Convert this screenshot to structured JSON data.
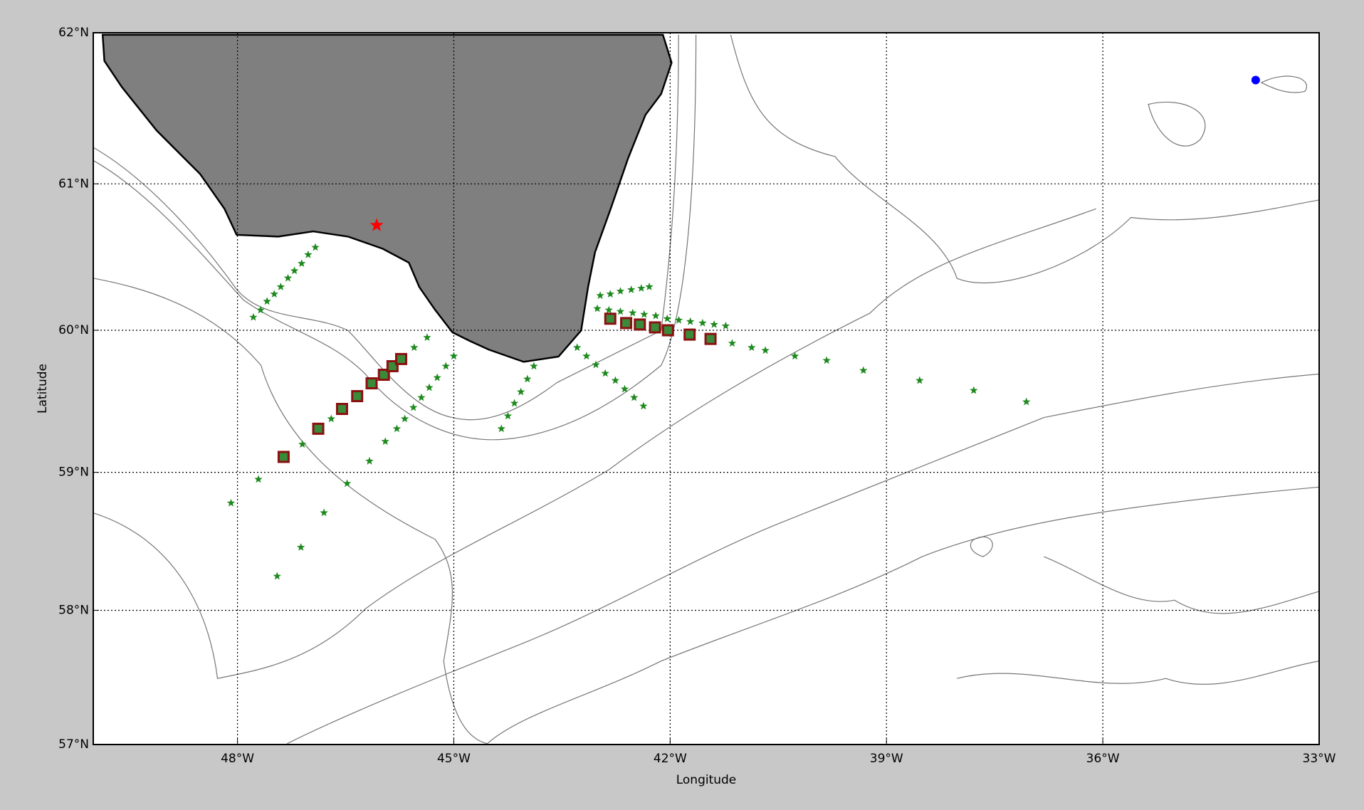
{
  "chart_data": {
    "type": "scatter",
    "projection": "mercator",
    "grid": true,
    "xlabel": "Longitude",
    "ylabel": "Latitude",
    "xlim": [
      -50,
      -33
    ],
    "ylim": [
      57,
      62
    ],
    "xticks": [
      {
        "value": -48,
        "label": "48°W"
      },
      {
        "value": -45,
        "label": "45°W"
      },
      {
        "value": -42,
        "label": "42°W"
      },
      {
        "value": -39,
        "label": "39°W"
      },
      {
        "value": -36,
        "label": "36°W"
      },
      {
        "value": -33,
        "label": "33°W"
      }
    ],
    "yticks": [
      {
        "value": 57,
        "label": "57°N"
      },
      {
        "value": 58,
        "label": "58°N"
      },
      {
        "value": 59,
        "label": "59°N"
      },
      {
        "value": 60,
        "label": "60°N"
      },
      {
        "value": 61,
        "label": "61°N"
      },
      {
        "value": 62,
        "label": "62°N"
      }
    ],
    "series": [
      {
        "color": "#1e8a1e",
        "marker": "star",
        "x": [
          -47.78,
          -47.68,
          -47.59,
          -47.49,
          -47.4,
          -47.3,
          -47.21,
          -47.11,
          -47.02,
          -46.92,
          -45.79,
          -45.68,
          -45.56,
          -45.45,
          -45.34,
          -45.23,
          -45.11,
          -45.0,
          -44.34,
          -44.25,
          -44.16,
          -44.07,
          -43.98,
          -43.89,
          -43.29,
          -43.16,
          -43.03,
          -42.9,
          -42.76,
          -42.63,
          -42.5,
          -42.37,
          -43.01,
          -42.85,
          -42.69,
          -42.52,
          -42.36,
          -42.2,
          -42.04,
          -41.88,
          -41.72,
          -41.55,
          -41.39,
          -41.23,
          -42.97,
          -42.83,
          -42.69,
          -42.54,
          -42.4,
          -42.29,
          -41.14,
          -40.87,
          -40.68,
          -40.27,
          -39.83,
          -39.32,
          -38.54,
          -37.79,
          -37.06,
          -48.09,
          -47.71,
          -47.45,
          -47.12,
          -46.8,
          -46.48,
          -46.17,
          -47.1,
          -46.7,
          -45.95,
          -45.55,
          -45.37
        ],
        "y": [
          60.09,
          60.14,
          60.2,
          60.25,
          60.3,
          60.36,
          60.41,
          60.46,
          60.52,
          60.57,
          59.31,
          59.38,
          59.46,
          59.53,
          59.6,
          59.67,
          59.75,
          59.82,
          59.31,
          59.4,
          59.49,
          59.57,
          59.66,
          59.75,
          59.88,
          59.82,
          59.76,
          59.7,
          59.65,
          59.59,
          59.53,
          59.47,
          60.15,
          60.14,
          60.13,
          60.12,
          60.11,
          60.1,
          60.08,
          60.07,
          60.06,
          60.05,
          60.04,
          60.03,
          60.24,
          60.25,
          60.27,
          60.28,
          60.29,
          60.3,
          59.91,
          59.88,
          59.86,
          59.82,
          59.79,
          59.72,
          59.65,
          59.58,
          59.5,
          58.78,
          58.95,
          58.25,
          58.46,
          58.71,
          58.92,
          59.08,
          59.2,
          59.38,
          59.22,
          59.88,
          59.95
        ]
      },
      {
        "color": "#8b1010",
        "marker": "square",
        "x": [
          -47.36,
          -46.88,
          -46.55,
          -46.34,
          -46.14,
          -45.97,
          -45.85,
          -45.73,
          -42.83,
          -42.61,
          -42.42,
          -42.21,
          -42.03,
          -41.73,
          -41.44
        ],
        "y": [
          59.11,
          59.31,
          59.45,
          59.54,
          59.63,
          59.69,
          59.75,
          59.8,
          60.08,
          60.05,
          60.04,
          60.02,
          60.0,
          59.97,
          59.94
        ]
      },
      {
        "color": "#ff0000",
        "marker": "star",
        "x": [
          -46.07
        ],
        "y": [
          60.72
        ]
      },
      {
        "color": "#0000ff",
        "marker": "dot",
        "x": [
          -33.88
        ],
        "y": [
          61.69
        ]
      }
    ]
  }
}
